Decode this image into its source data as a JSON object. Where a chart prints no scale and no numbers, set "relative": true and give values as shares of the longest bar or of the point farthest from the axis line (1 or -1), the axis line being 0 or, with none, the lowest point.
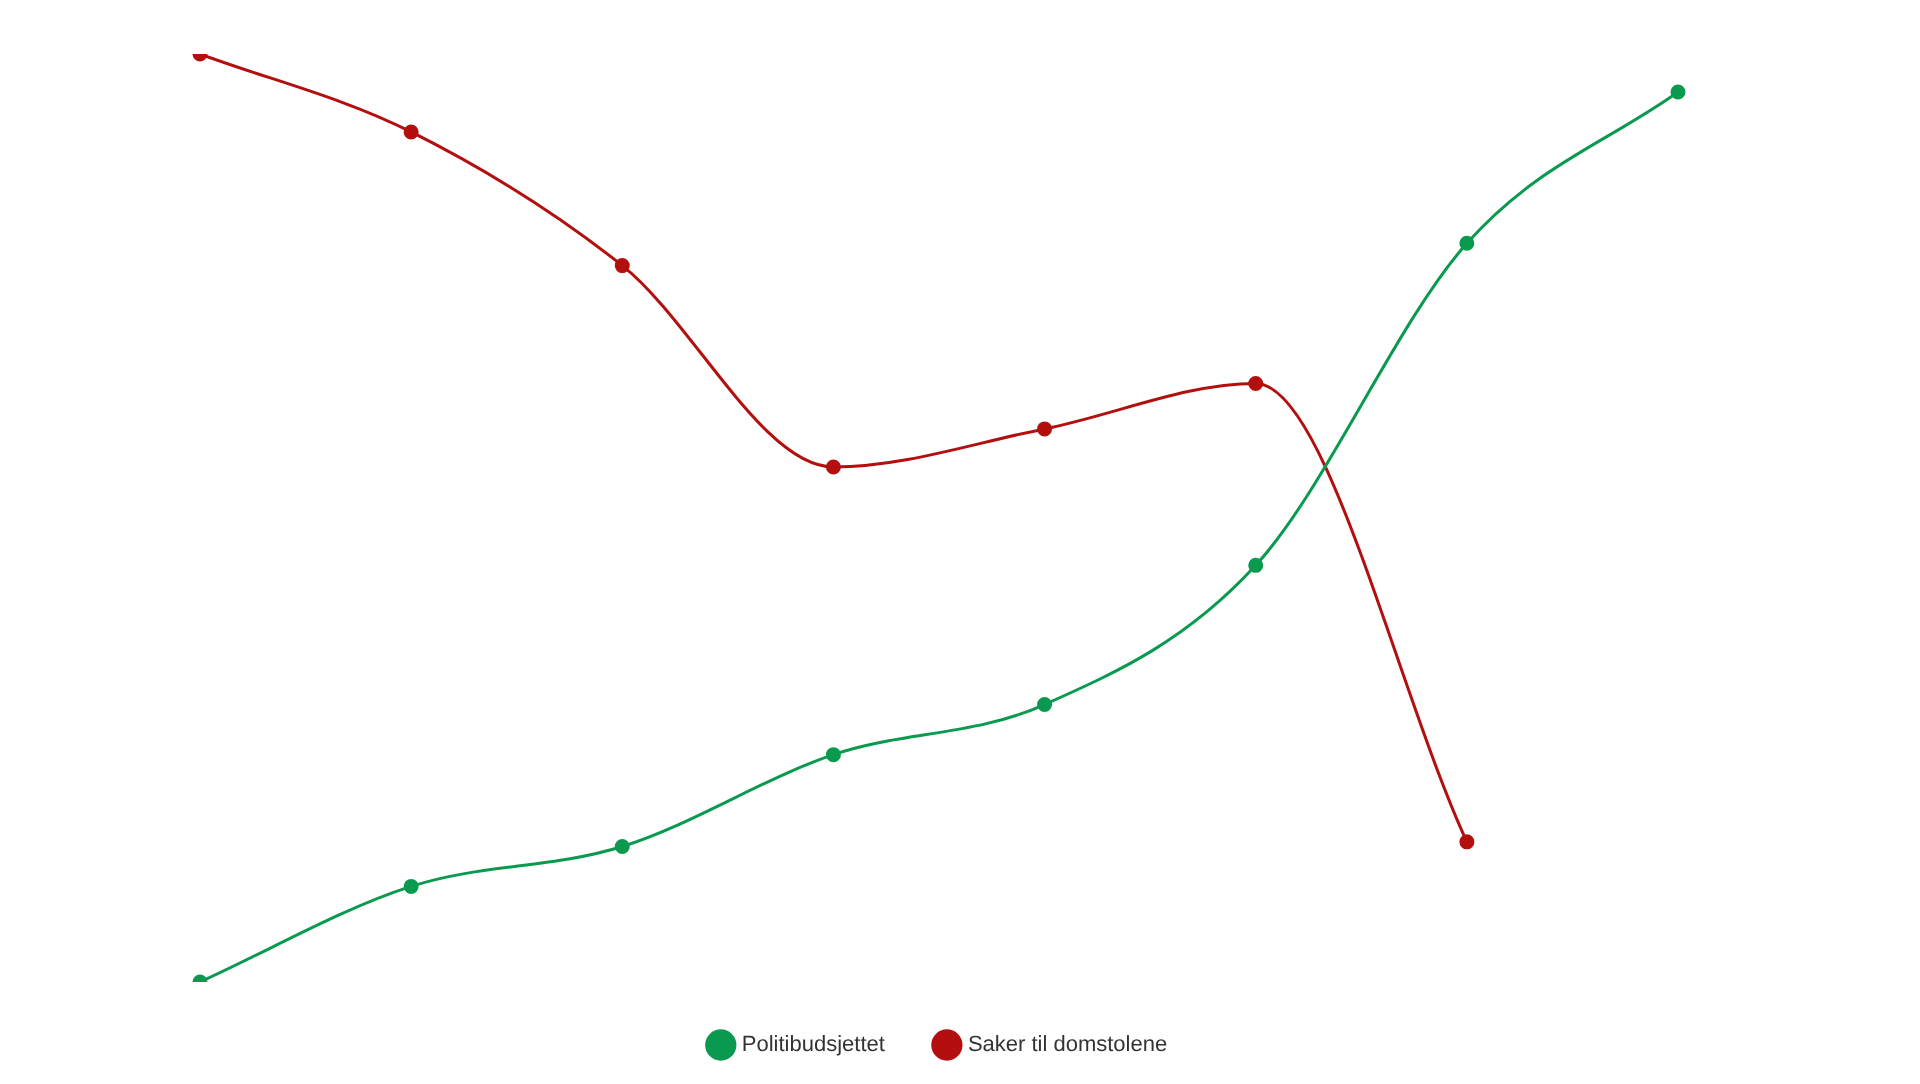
{
  "chart_data": {
    "type": "line",
    "relative": true,
    "categories": [
      null,
      null,
      null,
      null,
      null,
      null,
      null,
      null
    ],
    "series": [
      {
        "name": "Politibudsjettet",
        "color": "#0a9a4f",
        "values": [
          0,
          0.103,
          0.146,
          0.245,
          0.299,
          0.449,
          0.796,
          0.959
        ]
      },
      {
        "name": "Saker til domstolene",
        "color": "#b30f0f",
        "values": [
          1,
          0.916,
          0.772,
          0.555,
          0.596,
          0.645,
          0.151,
          null
        ]
      }
    ],
    "legend": "bottom",
    "marker": "circle"
  }
}
